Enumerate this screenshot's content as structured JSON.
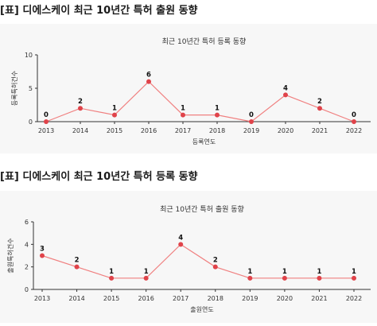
{
  "headings": [
    "[표] 디에스케이 최근 10년간 특허 출원 동향",
    "[표] 디에스케이 최근 10년간 특허 등록 동향"
  ],
  "colors": {
    "line": "#f08080",
    "point": "#e0434a",
    "axis": "#333333",
    "background": "#f7f7f7"
  },
  "chart_data": [
    {
      "type": "line",
      "title": "최근 10년간 특허 등록 동향",
      "xlabel": "등록연도",
      "ylabel": "등록특허건수",
      "categories": [
        "2013",
        "2014",
        "2015",
        "2016",
        "2017",
        "2018",
        "2019",
        "2020",
        "2021",
        "2022"
      ],
      "values": [
        0,
        2,
        1,
        6,
        1,
        1,
        0,
        4,
        2,
        0
      ],
      "ylim": [
        0,
        10
      ],
      "yticks": [
        0,
        5,
        10
      ],
      "grid": false,
      "data_labels": true
    },
    {
      "type": "line",
      "title": "최근 10년간 특허 출원 동향",
      "xlabel": "출원연도",
      "ylabel": "출원특허건수",
      "categories": [
        "2013",
        "2014",
        "2015",
        "2016",
        "2017",
        "2018",
        "2019",
        "2020",
        "2021",
        "2022"
      ],
      "values": [
        3,
        2,
        1,
        1,
        4,
        2,
        1,
        1,
        1,
        1
      ],
      "ylim": [
        0,
        6
      ],
      "yticks": [
        0,
        2,
        4,
        6
      ],
      "grid": false,
      "data_labels": true
    }
  ]
}
